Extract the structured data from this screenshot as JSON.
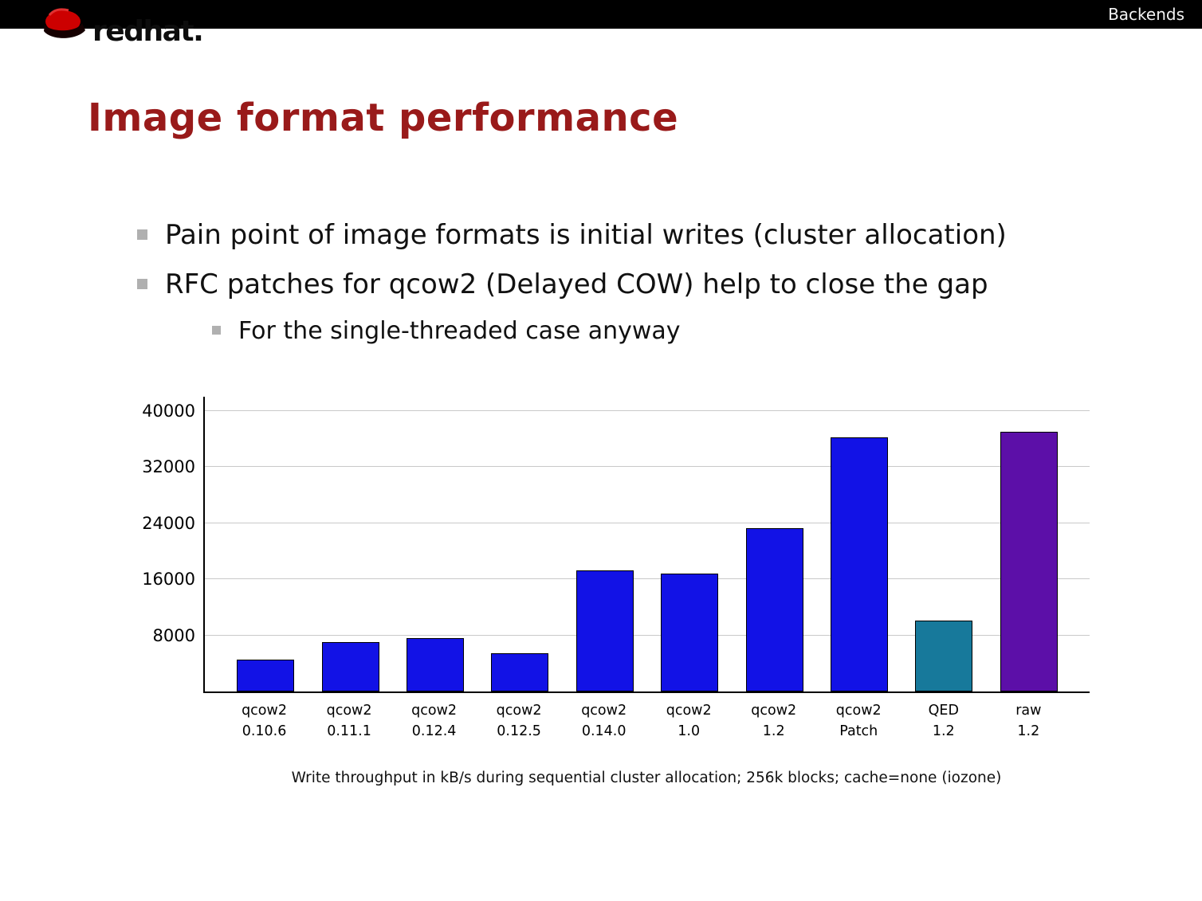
{
  "header": {
    "right_label": "Backends"
  },
  "logo": {
    "text": "redhat."
  },
  "title": "Image format performance",
  "bullets": {
    "b1": "Pain point of image formats is initial writes (cluster allocation)",
    "b2": "RFC patches for qcow2 (Delayed COW) help to close the gap",
    "b3": "For the single-threaded case anyway"
  },
  "colors": {
    "title_accent": "#991a1a",
    "header_bg": "#000000",
    "bar_blue": "#1212e6",
    "bar_teal": "#17799b",
    "bar_purple": "#5c0fa8"
  },
  "chart_data": {
    "type": "bar",
    "categories": [
      [
        "qcow2",
        "0.10.6"
      ],
      [
        "qcow2",
        "0.11.1"
      ],
      [
        "qcow2",
        "0.12.4"
      ],
      [
        "qcow2",
        "0.12.5"
      ],
      [
        "qcow2",
        "0.14.0"
      ],
      [
        "qcow2",
        "1.0"
      ],
      [
        "qcow2",
        "1.2"
      ],
      [
        "qcow2",
        "Patch"
      ],
      [
        "QED",
        "1.2"
      ],
      [
        "raw",
        "1.2"
      ]
    ],
    "values": [
      4500,
      7000,
      7600,
      5500,
      17300,
      16800,
      23300,
      36200,
      10100,
      37000
    ],
    "bar_colors": [
      "#1212e6",
      "#1212e6",
      "#1212e6",
      "#1212e6",
      "#1212e6",
      "#1212e6",
      "#1212e6",
      "#1212e6",
      "#17799b",
      "#5c0fa8"
    ],
    "title": "",
    "xlabel": "",
    "ylabel": "",
    "ylim": [
      0,
      42000
    ],
    "yticks": [
      8000,
      16000,
      24000,
      32000,
      40000
    ],
    "grid": true,
    "legend": "none",
    "caption": "Write throughput in kB/s during sequential cluster allocation; 256k blocks; cache=none (iozone)"
  }
}
